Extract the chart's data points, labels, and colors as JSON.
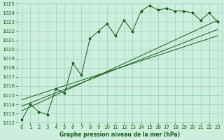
{
  "title": "Graphe pression niveau de la mer (hPa)",
  "bg_color": "#cceedd",
  "grid_color": "#99ccbb",
  "line_color": "#1a5c1a",
  "xlim": [
    -0.5,
    23.5
  ],
  "ylim": [
    1012,
    1025
  ],
  "yticks": [
    1012,
    1013,
    1014,
    1015,
    1016,
    1017,
    1018,
    1019,
    1020,
    1021,
    1022,
    1023,
    1024,
    1025
  ],
  "xticks": [
    0,
    1,
    2,
    3,
    4,
    5,
    6,
    7,
    8,
    9,
    10,
    11,
    12,
    13,
    14,
    15,
    16,
    17,
    18,
    19,
    20,
    21,
    22,
    23
  ],
  "hourly_data": [
    1012.3,
    1014.0,
    1013.2,
    1012.9,
    1015.7,
    1015.2,
    1018.5,
    1017.2,
    1021.2,
    1022.0,
    1022.8,
    1021.5,
    1023.2,
    1022.0,
    1024.2,
    1024.8,
    1024.3,
    1024.5,
    1024.2,
    1024.2,
    1024.0,
    1023.2,
    1024.0,
    1023.0
  ],
  "smooth_lines": [
    {
      "x0": 0,
      "y0": 1013.3,
      "x1": 23,
      "y1": 1023.2
    },
    {
      "x0": 0,
      "y0": 1013.8,
      "x1": 23,
      "y1": 1022.2
    },
    {
      "x0": 0,
      "y0": 1014.5,
      "x1": 23,
      "y1": 1021.5
    }
  ],
  "xlabel_fontsize": 5.5,
  "tick_fontsize": 5.0,
  "ytick_fontsize": 5.0
}
